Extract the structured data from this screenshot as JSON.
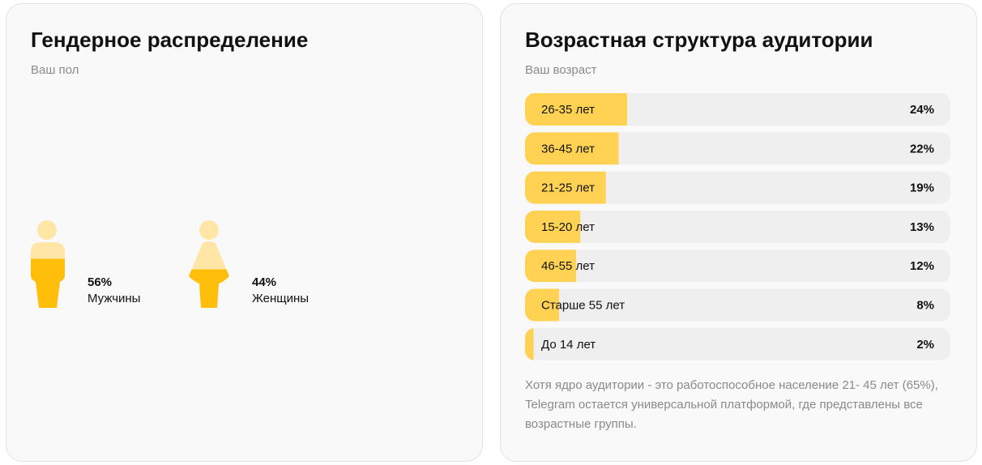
{
  "chart_data": [
    {
      "type": "pictogram",
      "title": "Гендерное распределение",
      "subtitle": "Ваш пол",
      "categories": [
        "Мужчины",
        "Женщины"
      ],
      "values": [
        56,
        44
      ],
      "value_labels": [
        "56%",
        "44%"
      ],
      "ylim": [
        0,
        100
      ],
      "color": "#ffbe0a"
    },
    {
      "type": "bar",
      "title": "Возрастная структура аудитории",
      "subtitle": "Ваш возраст",
      "categories": [
        "26-35 лет",
        "36-45 лет",
        "21-25 лет",
        "15-20 лет",
        "46-55 лет",
        "Старше 55 лет",
        "До 14 лет"
      ],
      "values": [
        24,
        22,
        19,
        13,
        12,
        8,
        2
      ],
      "value_labels": [
        "24%",
        "22%",
        "19%",
        "13%",
        "12%",
        "8%",
        "2%"
      ],
      "xlim": [
        0,
        100
      ],
      "color": "#ffd254",
      "annotation": "Хотя ядро аудитории - это работоспособное население 21- 45 лет (65%), Telegram остается универсальной платформой, где представлены все возрастные группы."
    }
  ]
}
